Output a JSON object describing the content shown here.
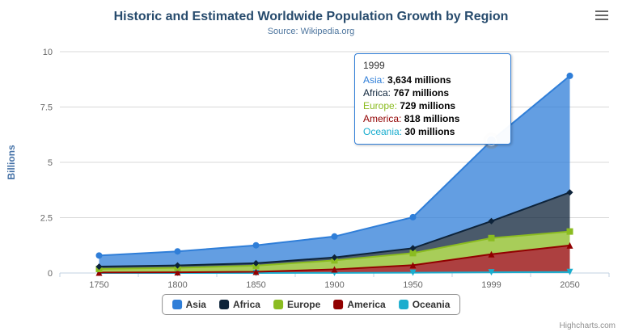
{
  "header": {
    "title": "Historic and Estimated Worldwide Population Growth by Region",
    "subtitle": "Source: Wikipedia.org"
  },
  "credits": "Highcharts.com",
  "icons": {
    "context_menu": "hamburger-menu-icon"
  },
  "colors": {
    "title": "#274b6d",
    "subtitle": "#4d759e",
    "axis_label": "#666666",
    "yaxis_title": "#4572A7",
    "grid_line": "#d8d8d8",
    "axis_line": "#c0d0e0",
    "legend_border": "#909090",
    "credits_text": "#909090"
  },
  "chart_data": {
    "type": "area",
    "stacking": "normal",
    "title": "Historic and Estimated Worldwide Population Growth by Region",
    "subtitle": "Source: Wikipedia.org",
    "xlabel": "",
    "ylabel": "Billions",
    "unit": "millions",
    "unit_divisor": 1000,
    "ylim": [
      0,
      10
    ],
    "yticks": [
      0,
      2.5,
      5,
      7.5,
      10
    ],
    "grid": true,
    "legend_position": "bottom",
    "categories": [
      "1750",
      "1800",
      "1850",
      "1900",
      "1950",
      "1999",
      "2050"
    ],
    "series": [
      {
        "name": "Asia",
        "color": "#2f7ed8",
        "marker": "circle",
        "values": [
          502,
          635,
          809,
          947,
          1402,
          3634,
          5268
        ]
      },
      {
        "name": "Africa",
        "color": "#0d233a",
        "marker": "diamond",
        "values": [
          106,
          107,
          111,
          133,
          221,
          767,
          1766
        ]
      },
      {
        "name": "Europe",
        "color": "#8bbc21",
        "marker": "square",
        "values": [
          163,
          203,
          276,
          408,
          547,
          729,
          628
        ]
      },
      {
        "name": "America",
        "color": "#910000",
        "marker": "triangle",
        "values": [
          18,
          31,
          54,
          156,
          339,
          818,
          1201
        ]
      },
      {
        "name": "Oceania",
        "color": "#1aadce",
        "marker": "triangle-down",
        "values": [
          2,
          2,
          2,
          6,
          13,
          30,
          46
        ]
      }
    ]
  },
  "hover_point": {
    "series": "Asia",
    "category": "1999"
  },
  "tooltip": {
    "category": "1999",
    "rows": [
      {
        "name": "Asia",
        "value": "3,634 millions"
      },
      {
        "name": "Africa",
        "value": "767 millions"
      },
      {
        "name": "Europe",
        "value": "729 millions"
      },
      {
        "name": "America",
        "value": "818 millions"
      },
      {
        "name": "Oceania",
        "value": "30 millions"
      }
    ]
  }
}
